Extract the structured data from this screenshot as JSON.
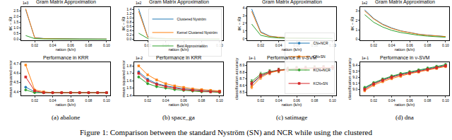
{
  "chart_data": [
    {
      "type": "line",
      "title": "Gram Matrix Approximation",
      "x_label": "ration (k/n)",
      "y_label": "‖K − K̃‖",
      "annotations": [
        "1e3"
      ],
      "grid": false,
      "xlim": [
        0.005,
        0.104
      ],
      "xticks": [
        0.02,
        0.04,
        0.06,
        0.08,
        {
          "value": 0.1,
          "label": "0.10"
        }
      ],
      "ylim": [
        -0.1,
        2.85
      ],
      "yticks": [
        {
          "value": 0,
          "label": "0.0"
        },
        0.5,
        {
          "value": 1,
          "label": "1.0"
        },
        1.5,
        {
          "value": 2,
          "label": "2.0"
        },
        2.5
      ],
      "x": [
        0.01,
        0.02,
        0.03,
        0.04,
        0.05,
        0.06,
        0.07,
        0.08,
        0.09,
        0.1
      ],
      "series": [
        {
          "name": "Clustered Nyström",
          "color": "#1f77b4",
          "line_style": "solid",
          "values": [
            2.62,
            0.14,
            0.06,
            0.04,
            0.03,
            0.02,
            0.02,
            0.02,
            0.01,
            0.01
          ]
        },
        {
          "name": "Kernel Clustered Nyström",
          "color": "#ff7f0e",
          "line_style": "solid",
          "values": [
            2.7,
            0.11,
            0.05,
            0.03,
            0.02,
            0.02,
            0.01,
            0.01,
            0.01,
            0.01
          ]
        },
        {
          "name": "Best Approximation",
          "color": "#2ca02c",
          "line_style": "solid",
          "values": [
            0.32,
            0.05,
            0.02,
            0.01,
            0.01,
            0.01,
            0,
            0,
            0,
            0
          ]
        }
      ]
    },
    {
      "type": "line",
      "title": "Gram Matrix Approximation",
      "x_label": "ration (k/n)",
      "y_label": "‖K − K̃‖",
      "annotations": [
        "1e2"
      ],
      "grid": false,
      "legend": "upper right",
      "xlim": [
        0.005,
        0.104
      ],
      "xticks": [
        0.02,
        0.04,
        0.06,
        0.08,
        {
          "value": 0.1,
          "label": "0.10"
        }
      ],
      "ylim": [
        -0.05,
        1.5
      ],
      "yticks": [
        {
          "value": 0,
          "label": "0.0"
        },
        0.2,
        0.4,
        0.6,
        0.8,
        {
          "value": 1,
          "label": "1.0"
        },
        1.2,
        1.4
      ],
      "x": [
        0.01,
        0.02,
        0.03,
        0.04,
        0.05,
        0.06,
        0.07,
        0.08,
        0.09,
        0.1
      ],
      "series": [
        {
          "name": "Clustered Nyström",
          "color": "#1f77b4",
          "line_style": "solid",
          "values": [
            1.42,
            0.12,
            0.05,
            0.03,
            0.02,
            0.02,
            0.01,
            0.01,
            0.01,
            0.01
          ]
        },
        {
          "name": "Kernel Clustered Nyström",
          "color": "#ff7f0e",
          "line_style": "solid",
          "values": [
            1.3,
            0.1,
            0.04,
            0.03,
            0.02,
            0.01,
            0.01,
            0.01,
            0.01,
            0.01
          ]
        },
        {
          "name": "Best Approximation",
          "color": "#2ca02c",
          "line_style": "solid",
          "values": [
            0.28,
            0.04,
            0.02,
            0.01,
            0.01,
            0.01,
            0,
            0,
            0,
            0
          ]
        }
      ]
    },
    {
      "type": "line",
      "title": "Gram Matrix Approximation",
      "x_label": "ration (k/n)",
      "y_label": "‖K − K̃‖",
      "grid": false,
      "xlim": [
        0.005,
        0.104
      ],
      "xticks": [
        0.02,
        0.04,
        0.06,
        0.08,
        {
          "value": 0.1,
          "label": "0.10"
        }
      ],
      "ylim": [
        -0.2,
        4.1
      ],
      "yticks": [
        0,
        1,
        2,
        3,
        4
      ],
      "x": [
        0.01,
        0.02,
        0.03,
        0.04,
        0.05,
        0.06,
        0.07,
        0.08,
        0.09,
        0.1
      ],
      "series": [
        {
          "name": "Clustered Nyström",
          "color": "#1f77b4",
          "line_style": "solid",
          "values": [
            3.85,
            0.9,
            0.35,
            0.2,
            0.12,
            0.1,
            0.08,
            0.06,
            0.05,
            0.05
          ]
        },
        {
          "name": "Kernel Clustered Nyström",
          "color": "#ff7f0e",
          "line_style": "solid",
          "values": [
            3.55,
            0.8,
            0.3,
            0.18,
            0.1,
            0.08,
            0.07,
            0.05,
            0.04,
            0.04
          ]
        },
        {
          "name": "Best Approximation",
          "color": "#2ca02c",
          "line_style": "solid",
          "values": [
            1.9,
            0.45,
            0.2,
            0.1,
            0.07,
            0.05,
            0.04,
            0.03,
            0.03,
            0.02
          ]
        }
      ]
    },
    {
      "type": "line",
      "title": "Gram Matrix Approximation",
      "x_label": "ration (k/n)",
      "y_label": "‖K − K̃‖",
      "annotations": [
        "1e2"
      ],
      "grid": false,
      "xlim": [
        0.005,
        0.104
      ],
      "xticks": [
        0.02,
        0.04,
        0.06,
        0.08,
        {
          "value": 0.1,
          "label": "0.10"
        }
      ],
      "ylim": [
        -0.1,
        3.4
      ],
      "yticks": [
        0,
        1,
        2,
        3
      ],
      "x": [
        0.01,
        0.02,
        0.03,
        0.04,
        0.05,
        0.06,
        0.07,
        0.08,
        0.09,
        0.1
      ],
      "series": [
        {
          "name": "Clustered Nyström",
          "color": "#1f77b4",
          "line_style": "solid",
          "values": [
            3.1,
            2.2,
            1.6,
            1.2,
            0.9,
            0.7,
            0.55,
            0.45,
            0.37,
            0.3
          ]
        },
        {
          "name": "Kernel Clustered Nyström",
          "color": "#ff7f0e",
          "line_style": "solid",
          "values": [
            3.0,
            2.15,
            1.55,
            1.15,
            0.88,
            0.68,
            0.53,
            0.43,
            0.35,
            0.29
          ]
        },
        {
          "name": "Best Approximation",
          "color": "#2ca02c",
          "line_style": "solid",
          "values": [
            2.6,
            1.8,
            1.3,
            0.95,
            0.72,
            0.55,
            0.43,
            0.34,
            0.27,
            0.22
          ]
        }
      ]
    },
    {
      "type": "line",
      "title": "Performance in KRR",
      "x_label": "ration (k/n)",
      "y_label": "mean squared error",
      "grid": false,
      "xlim": [
        0.005,
        0.104
      ],
      "xticks": [
        0.02,
        0.04,
        0.06,
        0.08,
        {
          "value": 0.1,
          "label": "0.10"
        }
      ],
      "ylim": [
        4.36,
        4.72
      ],
      "yticks": [
        4.4,
        4.5,
        4.6,
        4.7
      ],
      "x": [
        0.01,
        0.02,
        0.03,
        0.04,
        0.05,
        0.06,
        0.07,
        0.08,
        0.09,
        0.1
      ],
      "series": [
        {
          "name": "CN+NCR",
          "color": "#1f77b4",
          "marker": "circle",
          "line_style": "solid",
          "values": [
            4.45,
            4.4,
            4.39,
            4.39,
            4.39,
            4.39,
            4.39,
            4.39,
            4.39,
            4.39
          ],
          "errors": [
            0.005,
            0.005,
            0.005,
            0.005,
            0.005,
            0.005,
            0.005,
            0.005,
            0.005,
            0.005
          ]
        },
        {
          "name": "CN+SN",
          "color": "#ff7f0e",
          "marker": "x",
          "line_style": "solid",
          "values": [
            4.69,
            4.42,
            4.4,
            4.39,
            4.39,
            4.39,
            4.39,
            4.39,
            4.39,
            4.39
          ],
          "errors": [
            0.005,
            0.005,
            0.005,
            0.005,
            0.005,
            0.005,
            0.005,
            0.005,
            0.005,
            0.005
          ]
        },
        {
          "name": "KCN+NCR",
          "color": "#2ca02c",
          "marker": "diamond",
          "line_style": "solid",
          "values": [
            4.42,
            4.39,
            4.39,
            4.39,
            4.39,
            4.39,
            4.39,
            4.39,
            4.39,
            4.39
          ],
          "errors": [
            0.005,
            0.005,
            0.005,
            0.005,
            0.005,
            0.005,
            0.005,
            0.005,
            0.005,
            0.005
          ]
        },
        {
          "name": "KCN+SN",
          "color": "#d62728",
          "marker": "square",
          "line_style": "solid",
          "values": [
            4.56,
            4.41,
            4.39,
            4.39,
            4.39,
            4.39,
            4.39,
            4.39,
            4.39,
            4.39
          ],
          "errors": [
            0.005,
            0.005,
            0.005,
            0.005,
            0.005,
            0.005,
            0.005,
            0.005,
            0.005,
            0.005
          ]
        }
      ]
    },
    {
      "type": "line",
      "title": "Performance in KRR",
      "x_label": "ration (k/n)",
      "y_label": "mean squared error",
      "annotations": [
        "1e-2"
      ],
      "grid": false,
      "xlim": [
        0.005,
        0.104
      ],
      "xticks": [
        0.02,
        0.04,
        0.06,
        0.08,
        {
          "value": 0.1,
          "label": "0.10"
        }
      ],
      "ylim": [
        1.4,
        1.85
      ],
      "yticks": [
        1.4,
        1.5,
        1.6,
        1.7,
        1.8
      ],
      "x": [
        0.01,
        0.02,
        0.03,
        0.04,
        0.05,
        0.06,
        0.07,
        0.08,
        0.09,
        0.1
      ],
      "series": [
        {
          "name": "CN+NCR",
          "color": "#1f77b4",
          "marker": "circle",
          "line_style": "solid",
          "values": [
            1.72,
            1.62,
            1.56,
            1.53,
            1.51,
            1.49,
            1.48,
            1.47,
            1.46,
            1.46
          ],
          "errors": [
            0.01,
            0.01,
            0.01,
            0.01,
            0.01,
            0.01,
            0.01,
            0.01,
            0.01,
            0.01
          ]
        },
        {
          "name": "CN+SN",
          "color": "#ff7f0e",
          "marker": "x",
          "line_style": "solid",
          "values": [
            1.8,
            1.68,
            1.61,
            1.56,
            1.53,
            1.51,
            1.49,
            1.48,
            1.47,
            1.46
          ],
          "errors": [
            0.01,
            0.01,
            0.01,
            0.01,
            0.01,
            0.01,
            0.01,
            0.01,
            0.01,
            0.01
          ]
        },
        {
          "name": "KCN+NCR",
          "color": "#2ca02c",
          "marker": "diamond",
          "line_style": "solid",
          "values": [
            1.65,
            1.56,
            1.52,
            1.5,
            1.48,
            1.47,
            1.46,
            1.45,
            1.45,
            1.44
          ],
          "errors": [
            0.01,
            0.01,
            0.01,
            0.01,
            0.01,
            0.01,
            0.01,
            0.01,
            0.01,
            0.01
          ]
        },
        {
          "name": "KCN+SN",
          "color": "#d62728",
          "marker": "square",
          "line_style": "solid",
          "values": [
            1.7,
            1.6,
            1.55,
            1.52,
            1.5,
            1.48,
            1.47,
            1.46,
            1.45,
            1.45
          ],
          "errors": [
            0.01,
            0.01,
            0.01,
            0.01,
            0.01,
            0.01,
            0.01,
            0.01,
            0.01,
            0.01
          ]
        }
      ]
    },
    {
      "type": "line",
      "title": "Performance in ν-SVM",
      "x_label": "ration (k/n)",
      "y_label": "classification accuracy",
      "annotations": [
        "1e-1"
      ],
      "grid": false,
      "legend": "lower right",
      "xlim": [
        0.005,
        0.104
      ],
      "xticks": [
        0.02,
        0.04,
        0.06,
        0.08,
        {
          "value": 0.1,
          "label": "0.10"
        }
      ],
      "ylim": [
        8.45,
        8.95
      ],
      "yticks": [
        8.5,
        8.6,
        8.7,
        8.8,
        8.9
      ],
      "x": [
        0.01,
        0.02,
        0.03,
        0.04,
        0.05,
        0.06,
        0.07,
        0.08,
        0.09,
        0.1
      ],
      "series": [
        {
          "name": "CN+NCR",
          "color": "#1f77b4",
          "marker": "circle",
          "line_style": "solid",
          "values": [
            8.62,
            8.74,
            8.8,
            8.83,
            8.84,
            8.85,
            8.86,
            8.86,
            8.87,
            8.87
          ],
          "errors": [
            0.03,
            0.03,
            0.03,
            0.03,
            0.03,
            0.03,
            0.03,
            0.03,
            0.03,
            0.03
          ]
        },
        {
          "name": "CN+SN",
          "color": "#ff7f0e",
          "marker": "x",
          "line_style": "solid",
          "values": [
            8.58,
            8.72,
            8.79,
            8.82,
            8.84,
            8.85,
            8.85,
            8.86,
            8.86,
            8.87
          ],
          "errors": [
            0.03,
            0.03,
            0.03,
            0.03,
            0.03,
            0.03,
            0.03,
            0.03,
            0.03,
            0.03
          ]
        },
        {
          "name": "KCN+NCR",
          "color": "#2ca02c",
          "marker": "diamond",
          "line_style": "solid",
          "values": [
            8.66,
            8.77,
            8.81,
            8.83,
            8.85,
            8.86,
            8.86,
            8.87,
            8.87,
            8.87
          ],
          "errors": [
            0.03,
            0.03,
            0.03,
            0.03,
            0.03,
            0.03,
            0.03,
            0.03,
            0.03,
            0.03
          ]
        },
        {
          "name": "KCN+SN",
          "color": "#d62728",
          "marker": "square",
          "line_style": "solid",
          "values": [
            8.63,
            8.75,
            8.8,
            8.83,
            8.84,
            8.85,
            8.86,
            8.86,
            8.87,
            8.87
          ],
          "errors": [
            0.03,
            0.03,
            0.03,
            0.03,
            0.03,
            0.03,
            0.03,
            0.03,
            0.03,
            0.03
          ]
        }
      ]
    },
    {
      "type": "line",
      "title": "Performance in ν-SVM",
      "x_label": "ration (k/n)",
      "y_label": "classification accuracy",
      "annotations": [
        "1e-1"
      ],
      "grid": false,
      "xlim": [
        0.005,
        0.104
      ],
      "xticks": [
        0.02,
        0.04,
        0.06,
        0.08,
        {
          "value": 0.1,
          "label": "0.10"
        }
      ],
      "ylim": [
        8.9,
        9.45
      ],
      "yticks": [
        {
          "value": 9,
          "label": "9.0"
        },
        9.1,
        9.2,
        9.3,
        9.4
      ],
      "x": [
        0.01,
        0.02,
        0.03,
        0.04,
        0.05,
        0.06,
        0.07,
        0.08,
        0.09,
        0.1
      ],
      "series": [
        {
          "name": "CN+NCR",
          "color": "#1f77b4",
          "marker": "circle",
          "line_style": "solid",
          "values": [
            9.02,
            9.1,
            9.16,
            9.21,
            9.25,
            9.28,
            9.31,
            9.34,
            9.37,
            9.4
          ],
          "errors": [
            0.02,
            0.02,
            0.02,
            0.02,
            0.02,
            0.02,
            0.02,
            0.02,
            0.02,
            0.02
          ]
        },
        {
          "name": "CN+SN",
          "color": "#ff7f0e",
          "marker": "x",
          "line_style": "solid",
          "values": [
            8.98,
            9.07,
            9.13,
            9.18,
            9.22,
            9.26,
            9.29,
            9.32,
            9.35,
            9.38
          ],
          "errors": [
            0.02,
            0.02,
            0.02,
            0.02,
            0.02,
            0.02,
            0.02,
            0.02,
            0.02,
            0.02
          ]
        },
        {
          "name": "KCN+NCR",
          "color": "#2ca02c",
          "marker": "diamond",
          "line_style": "solid",
          "values": [
            9.03,
            9.11,
            9.17,
            9.22,
            9.26,
            9.29,
            9.32,
            9.35,
            9.38,
            9.41
          ],
          "errors": [
            0.02,
            0.02,
            0.02,
            0.02,
            0.02,
            0.02,
            0.02,
            0.02,
            0.02,
            0.02
          ]
        },
        {
          "name": "KCN+SN",
          "color": "#d62728",
          "marker": "square",
          "line_style": "solid",
          "values": [
            9.0,
            9.09,
            9.15,
            9.2,
            9.24,
            9.27,
            9.3,
            9.33,
            9.36,
            9.39
          ],
          "errors": [
            0.02,
            0.02,
            0.02,
            0.02,
            0.02,
            0.02,
            0.02,
            0.02,
            0.02,
            0.02
          ]
        }
      ]
    }
  ],
  "panels": [
    "(a) abalone",
    "(b) space_ga",
    "(c) satimage",
    "(d) dna"
  ],
  "caption": "Figure 1: Comparison between the standard Nyström (SN) and NCR while using the clustered"
}
